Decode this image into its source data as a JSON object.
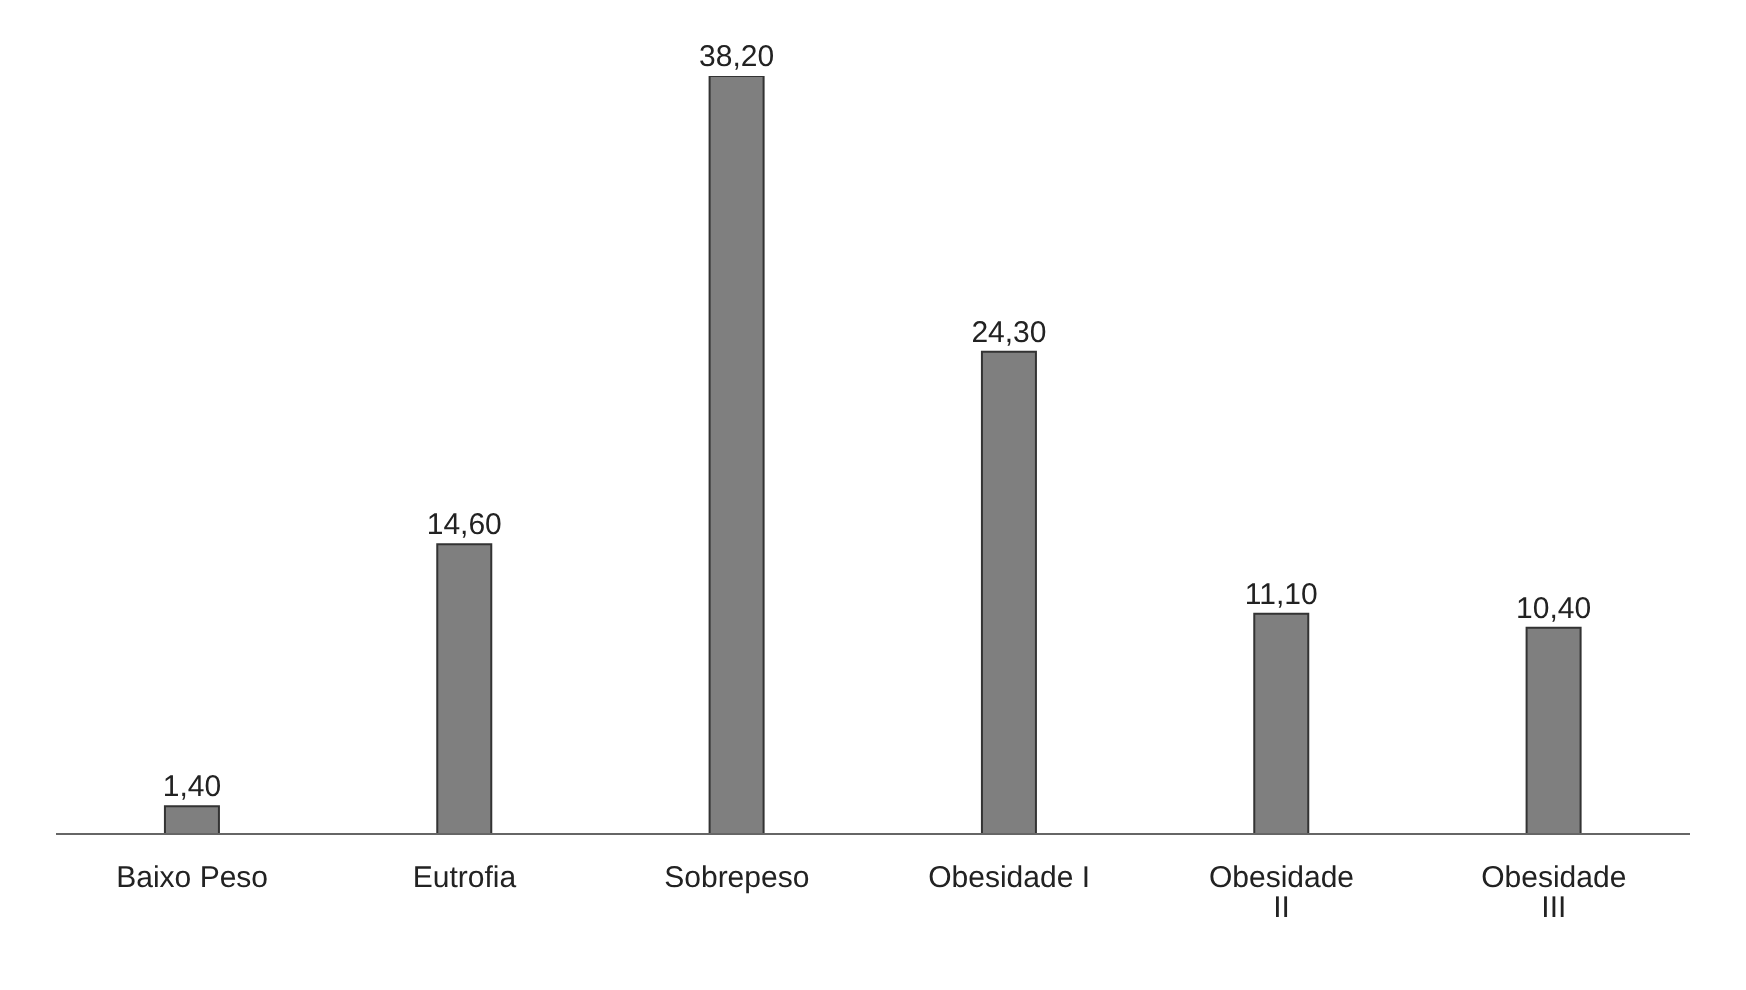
{
  "chart_data": {
    "type": "bar",
    "categories": [
      "Baixo Peso",
      "Eutrofia",
      "Sobrepeso",
      "Obesidade I",
      "Obesidade II",
      "Obesidade III"
    ],
    "values": [
      1.4,
      14.6,
      38.2,
      24.3,
      11.1,
      10.4
    ],
    "value_labels": [
      "1,40",
      "14,60",
      "38,20",
      "24,30",
      "11,10",
      "10,40"
    ],
    "color": "#7f7f7f"
  }
}
